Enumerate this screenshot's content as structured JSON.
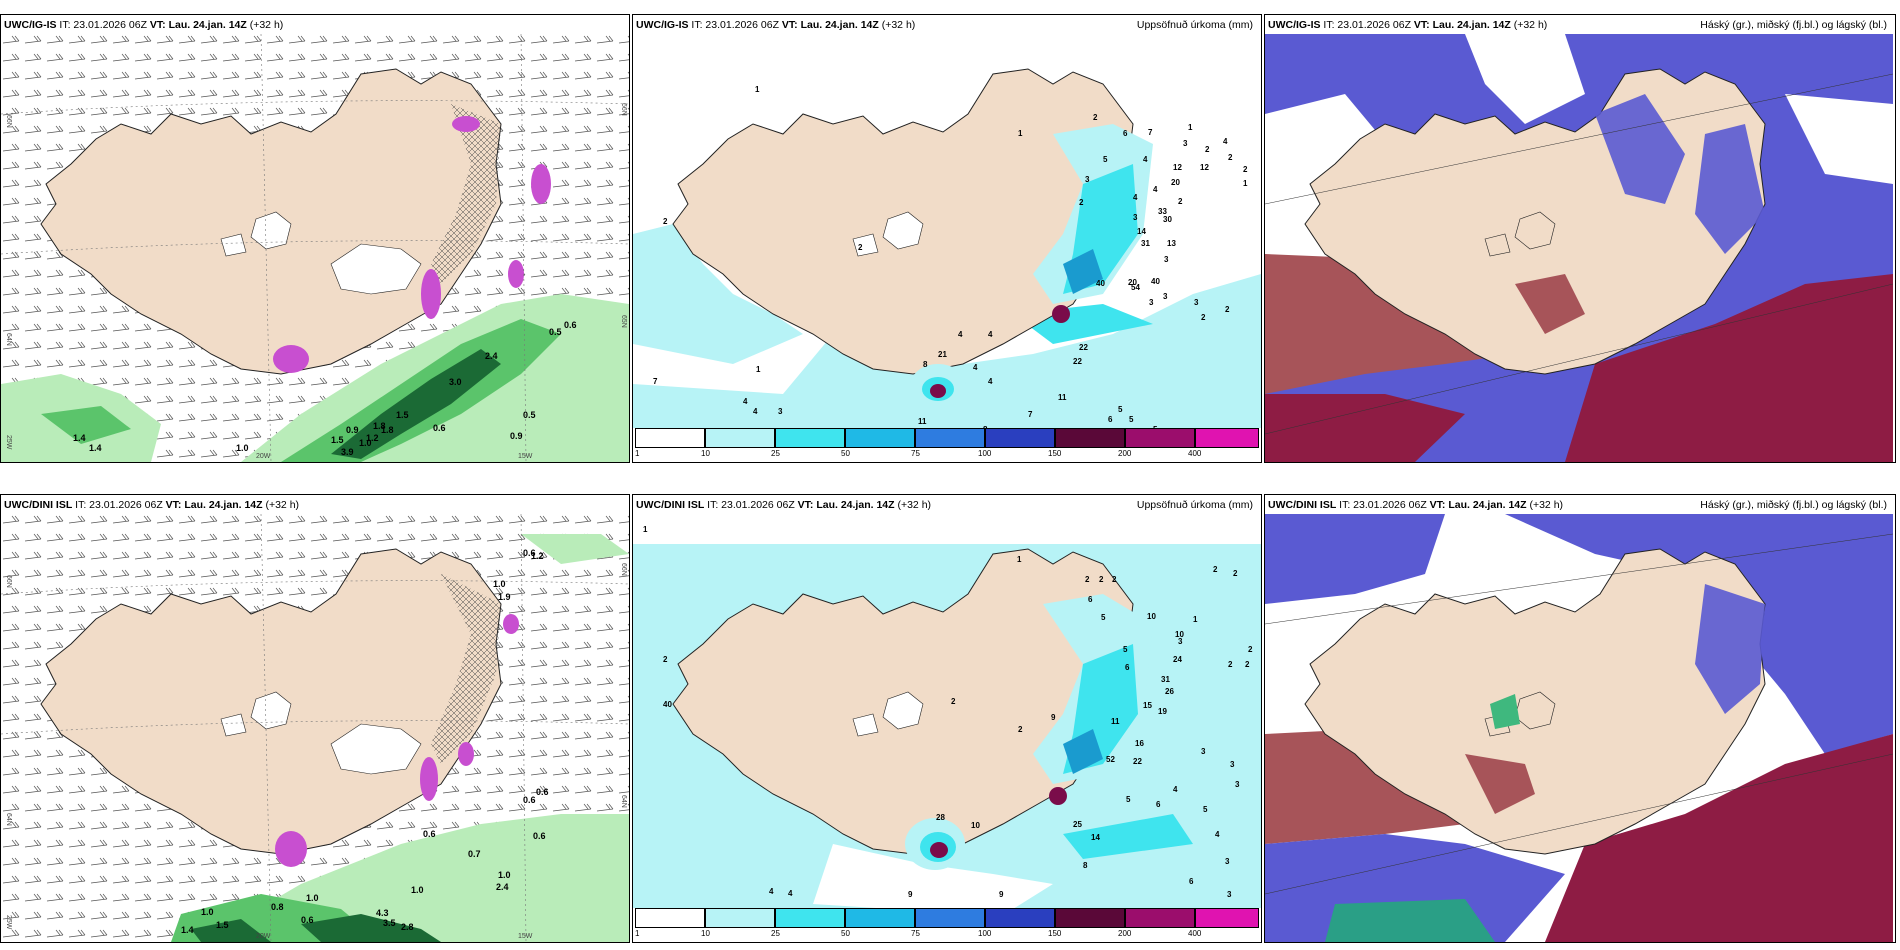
{
  "colors": {
    "land": "#f1dcc8",
    "sea_mask": "#ffffff",
    "precip_light": "#b7f3f6",
    "precip_cyan": "#3fe4ee",
    "precip_dark": "#1a9bcf",
    "precip_extreme": "#7a0c4a",
    "wind_green_light": "#b9ecb9",
    "wind_green": "#5bc46b",
    "wind_green_dark": "#1b6a35",
    "gust_magenta": "#c84fd0",
    "cloud_high": "#7f9a95",
    "cloud_mid": "#5a5ad2",
    "cloud_low": "#8e1c44"
  },
  "rows": [
    {
      "model": "UWC/IG-IS",
      "it": "IT: 23.01.2026 06Z",
      "vt": "VT: Lau. 24.jan. 14Z",
      "lead": "(+32 h)",
      "wind_labels": [
        "0.5",
        "0.6",
        "0.5",
        "2.4",
        "3.0",
        "0.9",
        "1.5",
        "0.6",
        "0.9",
        "1.0",
        "1.2",
        "1.4",
        "1.4",
        "1.0",
        "1.5",
        "3.9",
        "1.8",
        "1.8"
      ],
      "precip_labels": [
        "2",
        "1",
        "2",
        "2",
        "6",
        "7",
        "2",
        "2",
        "12",
        "20",
        "1",
        "2",
        "4",
        "3",
        "5",
        "4",
        "22",
        "40",
        "33",
        "30",
        "14",
        "31",
        "13",
        "3",
        "20",
        "3",
        "3",
        "2",
        "4",
        "21",
        "4",
        "22",
        "11",
        "4",
        "5",
        "6",
        "7",
        "11",
        "8",
        "5",
        "3",
        "4",
        "4",
        "7",
        "2",
        "4",
        "1",
        "1",
        "8",
        "12",
        "40",
        "54",
        "2",
        "4",
        "3",
        "4",
        "3",
        "5",
        "2",
        "1",
        "3"
      ]
    },
    {
      "model": "UWC/DINI ISL",
      "it": "IT: 23.01.2026 06Z",
      "vt": "VT: Lau. 24.jan. 14Z",
      "lead": "(+32 h)",
      "wind_labels": [
        "0.6",
        "1.0",
        "1.9",
        "0.6",
        "1.2",
        "0.6",
        "0.6",
        "0.6",
        "0.7",
        "1.0",
        "2.4",
        "1.0",
        "1.0",
        "1.0",
        "0.8",
        "0.6",
        "4.3",
        "3.5",
        "2.8",
        "1.5",
        "1.4"
      ],
      "precip_labels": [
        "1",
        "1",
        "2",
        "2",
        "2",
        "2",
        "2",
        "2",
        "6",
        "5",
        "10",
        "10",
        "24",
        "2",
        "2",
        "31",
        "26",
        "15",
        "19",
        "11",
        "16",
        "52",
        "22",
        "4",
        "6",
        "5",
        "9",
        "3",
        "3",
        "3",
        "3",
        "3",
        "5",
        "4",
        "28",
        "10",
        "25",
        "14",
        "8",
        "6",
        "3",
        "4",
        "2",
        "2",
        "9",
        "9",
        "4",
        "5",
        "6",
        "40",
        "1",
        "2"
      ]
    }
  ],
  "panel_right_titles": {
    "precip": "Uppsöfnuð úrkoma (mm)",
    "cloud": "Háský (gr.), miðský (fj.bl.) og lágský (bl.)"
  },
  "axis_labels": {
    "lat_66": "66N",
    "lat_64": "64N",
    "lat_65": "65N",
    "lon_20": "20W",
    "lon_15": "15W",
    "lon_25": "25W"
  },
  "legend": {
    "ticks": [
      "1",
      "10",
      "25",
      "50",
      "75",
      "100",
      "150",
      "200",
      "400"
    ],
    "colors": [
      "#ffffff",
      "#b7f3f6",
      "#3fe4ee",
      "#1fb9e6",
      "#2e7ce0",
      "#2a3fbf",
      "#5a0838",
      "#9b0d6c",
      "#e013b0",
      "#f3b6ef"
    ]
  }
}
